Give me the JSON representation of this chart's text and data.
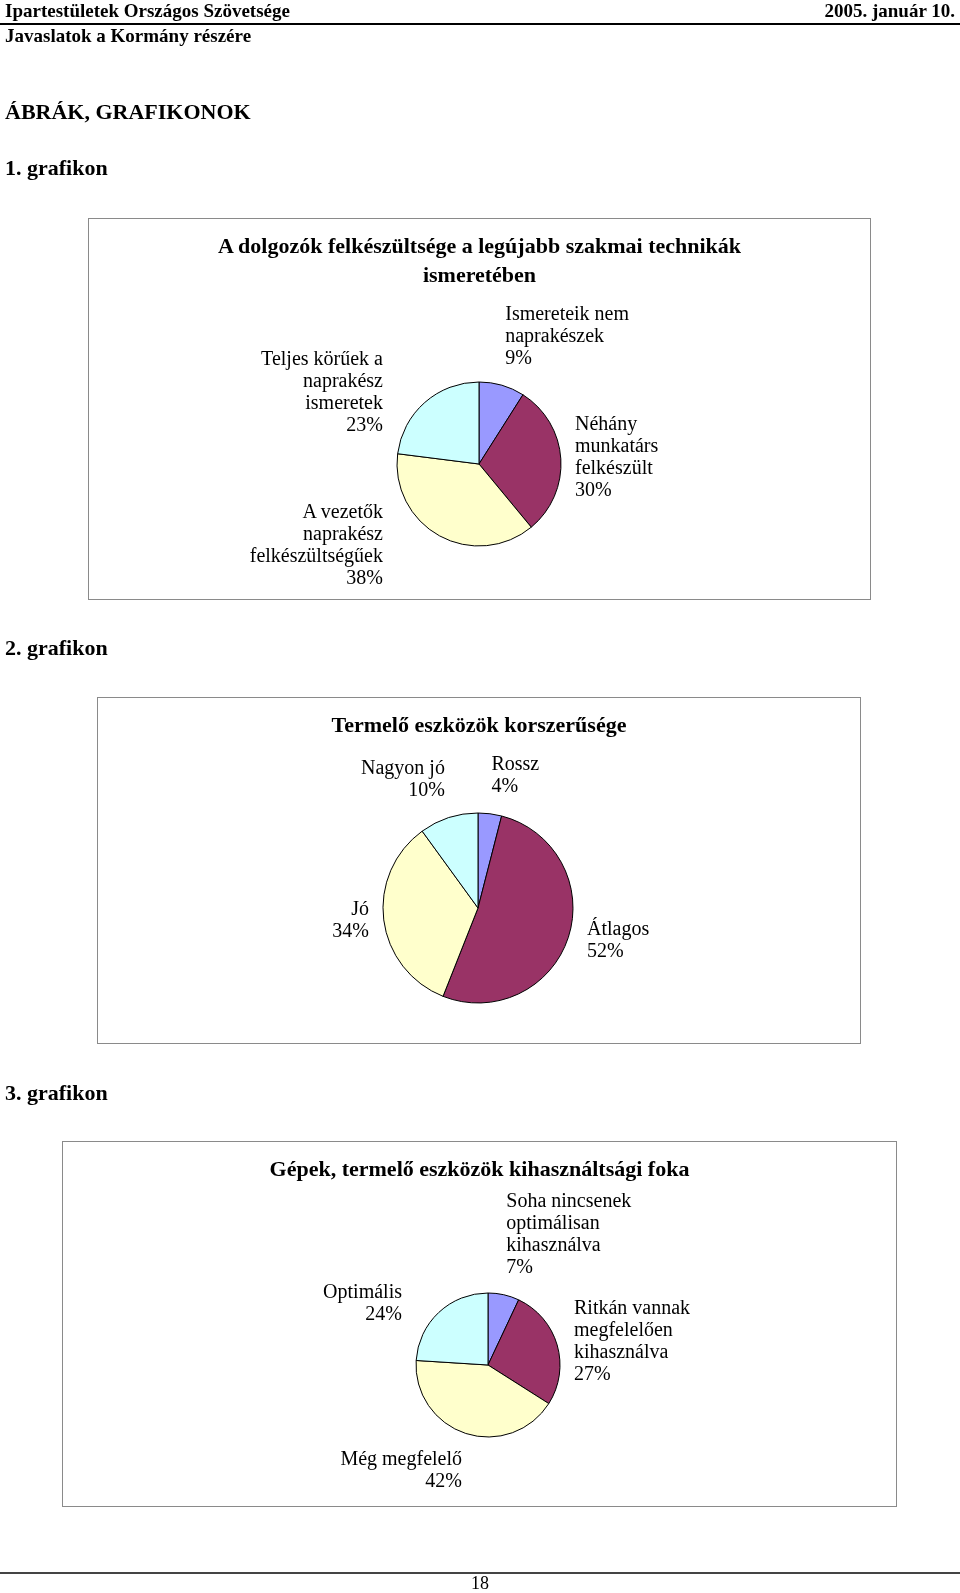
{
  "chart_data": [
    {
      "type": "pie",
      "title": "A dolgozók felkészültsége a legújabb szakmai technikák ismeretében",
      "categories": [
        "Ismereteik nem naprakészek",
        "Néhány munkatárs felkészült",
        "A vezetők naprakész felkészültségűek",
        "Teljes körűek a naprakész ismeretek"
      ],
      "values": [
        9,
        30,
        38,
        23
      ],
      "colors": [
        "#9999ff",
        "#993366",
        "#ffffcc",
        "#ccffff"
      ],
      "value_labels": [
        "9%",
        "30%",
        "38%",
        "23%"
      ],
      "annotations": [
        "Ipartestületek Országos Szövetsége",
        "2005. január 10.",
        "Javaslatok a Kormány részére",
        "ÁBRÁK, GRAFIKONOK",
        "1. grafikon"
      ]
    },
    {
      "type": "pie",
      "title": "Termelő eszközök korszerűsége",
      "categories": [
        "Rossz",
        "Átlagos",
        "Jó",
        "Nagyon jó"
      ],
      "values": [
        4,
        52,
        34,
        10
      ],
      "colors": [
        "#9999ff",
        "#993366",
        "#ffffcc",
        "#ccffff"
      ],
      "value_labels": [
        "4%",
        "52%",
        "34%",
        "10%"
      ],
      "annotations": [
        "2. grafikon"
      ]
    },
    {
      "type": "pie",
      "title": "Gépek, termelő eszközök kihasználtsági foka",
      "categories": [
        "Soha nincsenek optimálisan kihasználva",
        "Ritkán vannak megfelelően kihasználva",
        "Még megfelelő",
        "Optimális"
      ],
      "values": [
        7,
        27,
        42,
        24
      ],
      "colors": [
        "#9999ff",
        "#993366",
        "#ffffcc",
        "#ccffff"
      ],
      "value_labels": [
        "7%",
        "27%",
        "42%",
        "24%"
      ],
      "annotations": [
        "3. grafikon",
        "18"
      ]
    }
  ]
}
